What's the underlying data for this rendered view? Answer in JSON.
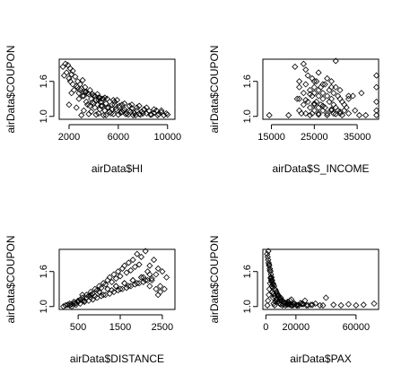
{
  "chart_data": [
    {
      "type": "scatter",
      "xlabel": "airData$HI",
      "ylabel": "airData$COUPON",
      "xlim": [
        1200,
        10600
      ],
      "ylim": [
        0.95,
        1.98
      ],
      "xticks": [
        2000,
        6000,
        10000
      ],
      "xtick_labels": [
        "2000",
        "6000",
        "10000"
      ],
      "yticks": [
        1.0,
        1.6
      ],
      "ytick_labels": [
        "1.0",
        "1.6"
      ],
      "x": [
        1500,
        1700,
        1900,
        2100,
        2300,
        1600,
        1800,
        2000,
        2200,
        2500,
        2700,
        2900,
        3100,
        3300,
        2400,
        2600,
        2800,
        3000,
        3200,
        3400,
        3600,
        3800,
        4000,
        4200,
        4400,
        4600,
        4800,
        5000,
        3500,
        3700,
        3900,
        4100,
        4300,
        4500,
        4700,
        4900,
        5100,
        5300,
        5500,
        5700,
        5900,
        6100,
        6300,
        6500,
        6700,
        6900,
        7100,
        7300,
        7500,
        7700,
        7900,
        8100,
        8300,
        8500,
        8700,
        8900,
        9100,
        9300,
        9500,
        9700,
        9900,
        10000,
        2000,
        2600,
        3200,
        3800,
        4400,
        5000,
        5600,
        6200,
        6800,
        7400,
        8000,
        8600,
        9200,
        2300,
        2900,
        3500,
        4100,
        4700,
        5300,
        5900,
        6500,
        7100,
        7700,
        8300,
        8900,
        9500,
        2100,
        2700,
        3300,
        3900,
        4500,
        5100,
        5700,
        6300,
        6900,
        7500,
        8100,
        3000,
        3600,
        4200,
        4800,
        5400,
        6000,
        6600,
        7200,
        7800,
        2800,
        3400,
        4000,
        4600,
        5200,
        5800,
        6400,
        7000,
        2200,
        3100,
        4400,
        5500,
        6100,
        3700,
        4300,
        4900,
        5600
      ],
      "y": [
        1.85,
        1.9,
        1.88,
        1.82,
        1.78,
        1.7,
        1.75,
        1.65,
        1.72,
        1.68,
        1.6,
        1.55,
        1.62,
        1.5,
        1.45,
        1.52,
        1.4,
        1.48,
        1.35,
        1.42,
        1.38,
        1.3,
        1.36,
        1.28,
        1.32,
        1.25,
        1.3,
        1.22,
        1.2,
        1.18,
        1.24,
        1.15,
        1.2,
        1.12,
        1.18,
        1.1,
        1.15,
        1.08,
        1.12,
        1.2,
        1.1,
        1.15,
        1.08,
        1.12,
        1.05,
        1.1,
        1.14,
        1.06,
        1.1,
        1.04,
        1.08,
        1.12,
        1.05,
        1.09,
        1.03,
        1.06,
        1.1,
        1.04,
        1.07,
        1.02,
        1.05,
        1.03,
        1.2,
        1.15,
        1.1,
        1.08,
        1.05,
        1.02,
        1.04,
        1.06,
        1.03,
        1.02,
        1.05,
        1.03,
        1.02,
        1.55,
        1.45,
        1.4,
        1.35,
        1.3,
        1.25,
        1.28,
        1.22,
        1.2,
        1.18,
        1.15,
        1.12,
        1.1,
        1.6,
        1.5,
        1.42,
        1.38,
        1.32,
        1.3,
        1.25,
        1.2,
        1.18,
        1.15,
        1.12,
        1.02,
        1.04,
        1.03,
        1.02,
        1.05,
        1.03,
        1.04,
        1.02,
        1.03,
        1.3,
        1.25,
        1.22,
        1.18,
        1.15,
        1.12,
        1.1,
        1.08,
        1.4,
        1.35,
        1.28,
        1.2,
        1.18,
        1.45,
        1.38,
        1.32,
        1.28
      ]
    },
    {
      "type": "scatter",
      "xlabel": "airData$S_INCOME",
      "ylabel": "airData$COUPON",
      "xlim": [
        13000,
        40000
      ],
      "ylim": [
        0.95,
        1.98
      ],
      "xticks": [
        15000,
        25000,
        35000
      ],
      "xtick_labels": [
        "15000",
        "25000",
        "35000"
      ],
      "yticks": [
        1.0,
        1.6
      ],
      "ytick_labels": [
        "1.0",
        "1.6"
      ],
      "x": [
        14500,
        19000,
        20500,
        21500,
        21500,
        21500,
        21500,
        22500,
        22500,
        22500,
        23000,
        23000,
        23000,
        23500,
        23500,
        24000,
        24000,
        24500,
        24500,
        24500,
        25000,
        25000,
        25000,
        25000,
        25500,
        25500,
        26000,
        26000,
        26000,
        26000,
        26500,
        26500,
        27000,
        27000,
        27000,
        27500,
        27500,
        28000,
        28000,
        28500,
        28500,
        29000,
        29000,
        29000,
        29500,
        29500,
        29500,
        30000,
        30000,
        30500,
        30500,
        31000,
        31000,
        31500,
        31500,
        32000,
        32000,
        32500,
        33000,
        33000,
        34000,
        34500,
        35500,
        36000,
        37000,
        39500,
        39500,
        39500,
        39500,
        39500,
        22000,
        24000,
        26000,
        28000,
        30000,
        25000,
        27000,
        29000,
        31000,
        33000,
        21000,
        23000,
        25000,
        27000,
        29000,
        31000,
        26000,
        28000,
        30000,
        24000
      ],
      "y": [
        1.02,
        1.02,
        1.85,
        1.6,
        1.5,
        1.3,
        1.1,
        1.9,
        1.4,
        1.2,
        1.8,
        1.55,
        1.05,
        1.7,
        1.25,
        1.45,
        1.15,
        1.65,
        1.35,
        1.05,
        1.5,
        1.4,
        1.2,
        1.1,
        1.6,
        1.25,
        1.45,
        1.35,
        1.15,
        1.05,
        1.5,
        1.2,
        1.4,
        1.3,
        1.1,
        1.55,
        1.15,
        1.35,
        1.05,
        1.45,
        1.25,
        1.6,
        1.3,
        1.1,
        1.4,
        1.2,
        1.05,
        1.5,
        1.15,
        1.35,
        1.1,
        1.3,
        1.05,
        1.25,
        1.02,
        1.2,
        1.1,
        1.15,
        1.3,
        1.05,
        1.35,
        1.1,
        1.02,
        1.4,
        1.02,
        1.7,
        1.5,
        1.25,
        1.1,
        1.02,
        1.05,
        1.02,
        1.03,
        1.02,
        1.04,
        1.6,
        1.55,
        1.5,
        1.45,
        1.35,
        1.3,
        1.28,
        1.22,
        1.18,
        1.12,
        1.08,
        1.75,
        1.65,
        1.95,
        1.38
      ]
    },
    {
      "type": "scatter",
      "xlabel": "airData$DISTANCE",
      "ylabel": "airData$COUPON",
      "xlim": [
        50,
        2800
      ],
      "ylim": [
        0.95,
        1.98
      ],
      "xticks": [
        500,
        1500,
        2500
      ],
      "xtick_labels": [
        "500",
        "1500",
        "2500"
      ],
      "yticks": [
        1.0,
        1.6
      ],
      "ytick_labels": [
        "1.0",
        "1.6"
      ],
      "x": [
        150,
        200,
        250,
        300,
        350,
        400,
        450,
        500,
        550,
        600,
        650,
        700,
        750,
        800,
        850,
        900,
        950,
        1000,
        1050,
        1100,
        1150,
        1200,
        1250,
        1300,
        1350,
        1400,
        1450,
        1500,
        1550,
        1600,
        1650,
        1700,
        1750,
        1800,
        1850,
        1900,
        1950,
        2000,
        2050,
        2100,
        2150,
        2200,
        2250,
        2300,
        2350,
        2400,
        2450,
        2500,
        2550,
        2600,
        300,
        400,
        500,
        600,
        700,
        800,
        900,
        1000,
        1100,
        1200,
        1300,
        1400,
        1500,
        1600,
        1700,
        1800,
        1900,
        2000,
        2100,
        2200,
        350,
        450,
        550,
        650,
        750,
        850,
        950,
        1050,
        1150,
        1250,
        1350,
        1450,
        1550,
        1650,
        1750,
        1850,
        1950,
        2050,
        2150,
        2250,
        2350,
        2450,
        600,
        800,
        1000,
        1200,
        1400,
        1600,
        1800,
        2000,
        2200,
        2400
      ],
      "y": [
        1.0,
        1.02,
        1.03,
        1.05,
        1.04,
        1.08,
        1.06,
        1.1,
        1.12,
        1.15,
        1.1,
        1.2,
        1.18,
        1.25,
        1.22,
        1.3,
        1.28,
        1.35,
        1.32,
        1.4,
        1.38,
        1.45,
        1.5,
        1.42,
        1.55,
        1.48,
        1.6,
        1.52,
        1.65,
        1.7,
        1.58,
        1.75,
        1.62,
        1.8,
        1.68,
        1.9,
        1.72,
        1.85,
        1.5,
        1.95,
        1.6,
        1.7,
        1.45,
        1.8,
        1.55,
        1.65,
        1.35,
        1.6,
        1.3,
        1.5,
        1.02,
        1.05,
        1.08,
        1.1,
        1.15,
        1.2,
        1.18,
        1.25,
        1.2,
        1.3,
        1.28,
        1.35,
        1.3,
        1.4,
        1.35,
        1.45,
        1.4,
        1.5,
        1.45,
        1.55,
        1.0,
        1.03,
        1.05,
        1.08,
        1.1,
        1.12,
        1.15,
        1.18,
        1.2,
        1.22,
        1.25,
        1.28,
        1.3,
        1.32,
        1.35,
        1.38,
        1.4,
        1.42,
        1.45,
        1.48,
        1.3,
        1.25,
        1.2,
        1.15,
        1.25,
        1.3,
        1.35,
        1.4,
        1.45,
        1.5,
        1.35,
        1.2
      ]
    },
    {
      "type": "scatter",
      "xlabel": "airData$PAX",
      "ylabel": "airData$COUPON",
      "xlim": [
        -2000,
        75000
      ],
      "ylim": [
        0.95,
        1.98
      ],
      "xticks": [
        0,
        20000,
        60000
      ],
      "xtick_labels": [
        "0",
        "20000",
        "60000"
      ],
      "yticks": [
        1.0,
        1.6
      ],
      "ytick_labels": [
        "1.0",
        "1.6"
      ],
      "x": [
        800,
        1200,
        1500,
        1800,
        2200,
        2600,
        3000,
        3400,
        3800,
        4200,
        4600,
        5000,
        5500,
        6000,
        6500,
        7000,
        7500,
        8000,
        8500,
        9000,
        9500,
        10000,
        11000,
        12000,
        13000,
        14000,
        15000,
        16000,
        17000,
        18000,
        19000,
        20000,
        22000,
        24000,
        26000,
        28000,
        30000,
        33000,
        36000,
        40000,
        45000,
        50000,
        55000,
        60000,
        65000,
        72000,
        1000,
        1400,
        2000,
        2400,
        2800,
        3200,
        3600,
        4000,
        4400,
        4800,
        5200,
        5800,
        6400,
        7200,
        8000,
        9000,
        10000,
        11500,
        13000,
        14500,
        16000,
        17500,
        19000,
        21000,
        23000,
        25000,
        27000,
        1600,
        2100,
        2700,
        3300,
        3900,
        4500,
        5100,
        5700,
        6300,
        7000,
        8200,
        9500,
        11000,
        12500,
        14000,
        15500,
        17000,
        18500,
        20500,
        24000,
        31000,
        38000
      ],
      "y": [
        1.9,
        1.85,
        1.8,
        1.75,
        1.7,
        1.65,
        1.6,
        1.55,
        1.5,
        1.45,
        1.4,
        1.38,
        1.35,
        1.3,
        1.28,
        1.25,
        1.22,
        1.2,
        1.18,
        1.15,
        1.12,
        1.1,
        1.1,
        1.08,
        1.06,
        1.05,
        1.04,
        1.03,
        1.12,
        1.02,
        1.05,
        1.03,
        1.02,
        1.04,
        1.1,
        1.02,
        1.03,
        1.05,
        1.02,
        1.15,
        1.03,
        1.02,
        1.04,
        1.02,
        1.03,
        1.05,
        1.02,
        1.1,
        1.2,
        1.3,
        1.4,
        1.5,
        1.45,
        1.35,
        1.25,
        1.15,
        1.05,
        1.02,
        1.08,
        1.12,
        1.18,
        1.06,
        1.15,
        1.04,
        1.02,
        1.08,
        1.1,
        1.03,
        1.05,
        1.02,
        1.06,
        1.04,
        1.02,
        1.95,
        1.72,
        1.62,
        1.48,
        1.42,
        1.32,
        1.22,
        1.18,
        1.16,
        1.12,
        1.08,
        1.04,
        1.02,
        1.06,
        1.03,
        1.05,
        1.02,
        1.04,
        1.02,
        1.05,
        1.03,
        1.02
      ]
    }
  ]
}
